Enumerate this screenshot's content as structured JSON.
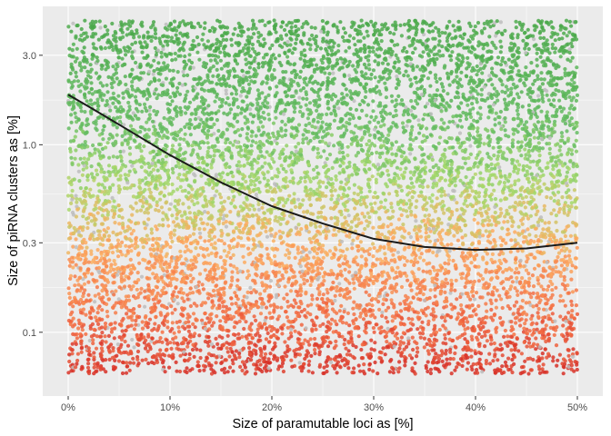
{
  "chart_data": {
    "type": "scatter",
    "title": "",
    "xlabel": "Size of paramutable loci as [%]",
    "ylabel": "Size of piRNA clusters as [%]",
    "x_scale": "linear",
    "y_scale": "log10",
    "xlim": [
      -2.5,
      52.5
    ],
    "ylim": [
      0.0457,
      5.47
    ],
    "x_ticks": [
      0,
      10,
      20,
      30,
      40,
      50
    ],
    "x_tick_labels": [
      "0%",
      "10%",
      "20%",
      "30%",
      "40%",
      "50%"
    ],
    "y_ticks": [
      0.1,
      0.3,
      1.0,
      3.0
    ],
    "y_tick_labels": [
      "0.1",
      "0.3",
      "1.0",
      "3.0"
    ],
    "grid": true,
    "legend": "none",
    "points": {
      "count": 9000,
      "x_range": [
        0,
        50
      ],
      "y_range": [
        0.06,
        4.6
      ],
      "distribution": "uniform in x, log-uniform in y",
      "color_by": "y",
      "color_stops": [
        {
          "y": 0.06,
          "color": "#d73027"
        },
        {
          "y": 0.12,
          "color": "#f46d43"
        },
        {
          "y": 0.3,
          "color": "#fdae61"
        },
        {
          "y": 0.6,
          "color": "#a6d96a"
        },
        {
          "y": 1.3,
          "color": "#66bd63"
        },
        {
          "y": 4.6,
          "color": "#4aa84a"
        }
      ],
      "grey_fraction": 0.04,
      "grey_color": "#bdbdbd"
    },
    "trend_line": {
      "color": "#1a1a1a",
      "x": [
        0,
        2,
        5,
        10,
        15,
        20,
        25,
        30,
        35,
        40,
        45,
        50
      ],
      "y": [
        1.85,
        1.6,
        1.28,
        0.88,
        0.63,
        0.47,
        0.38,
        0.315,
        0.285,
        0.275,
        0.28,
        0.3
      ]
    }
  },
  "colors": {
    "panel_background": "#ebebeb",
    "gridline": "#ffffff",
    "axis_text": "#4d4d4d"
  }
}
